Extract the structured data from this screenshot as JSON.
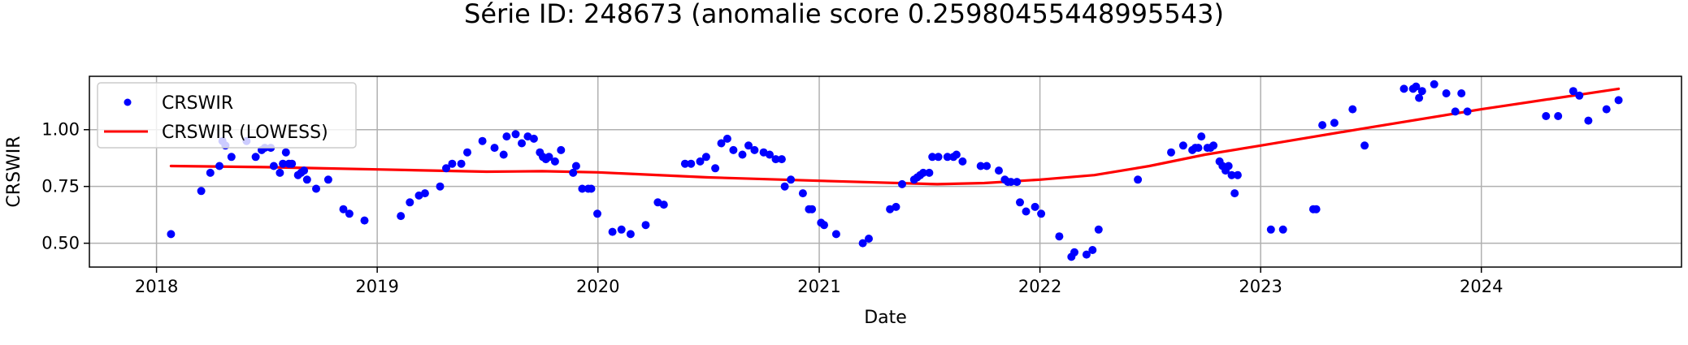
{
  "chart_data": {
    "type": "scatter",
    "title": "Série ID: 248673 (anomalie score 0.25980455448995543)",
    "xlabel": "Date",
    "ylabel": "CRSWIR",
    "xlim": [
      "2017-09-12",
      "2024-11-27"
    ],
    "ylim": [
      0.395,
      1.235
    ],
    "x_ticks": [
      "2018-01-01",
      "2019-01-01",
      "2020-01-01",
      "2021-01-01",
      "2022-01-01",
      "2023-01-01",
      "2024-01-01"
    ],
    "x_tick_labels": [
      "2018",
      "2019",
      "2020",
      "2021",
      "2022",
      "2023",
      "2024"
    ],
    "y_ticks": [
      0.5,
      0.75,
      1.0
    ],
    "y_tick_labels": [
      "0.50",
      "0.75",
      "1.00"
    ],
    "grid": true,
    "legend": "upper left",
    "colors": {
      "points": "#0000ff",
      "lowess": "#ff0000"
    },
    "series": [
      {
        "name": "CRSWIR",
        "kind": "scatter",
        "points": [
          [
            "2018-01-25",
            0.54
          ],
          [
            "2018-03-16",
            0.73
          ],
          [
            "2018-03-31",
            0.81
          ],
          [
            "2018-04-15",
            0.84
          ],
          [
            "2018-04-20",
            0.95
          ],
          [
            "2018-04-25",
            0.93
          ],
          [
            "2018-05-05",
            0.88
          ],
          [
            "2018-05-30",
            0.95
          ],
          [
            "2018-06-14",
            0.88
          ],
          [
            "2018-06-24",
            0.91
          ],
          [
            "2018-06-29",
            0.92
          ],
          [
            "2018-07-09",
            0.92
          ],
          [
            "2018-07-14",
            0.84
          ],
          [
            "2018-07-24",
            0.81
          ],
          [
            "2018-07-29",
            0.85
          ],
          [
            "2018-08-03",
            0.9
          ],
          [
            "2018-08-08",
            0.85
          ],
          [
            "2018-08-13",
            0.85
          ],
          [
            "2018-08-23",
            0.8
          ],
          [
            "2018-08-28",
            0.81
          ],
          [
            "2018-09-02",
            0.82
          ],
          [
            "2018-09-07",
            0.78
          ],
          [
            "2018-09-22",
            0.74
          ],
          [
            "2018-10-12",
            0.78
          ],
          [
            "2018-11-06",
            0.65
          ],
          [
            "2018-11-16",
            0.63
          ],
          [
            "2018-12-11",
            0.6
          ],
          [
            "2019-02-09",
            0.62
          ],
          [
            "2019-02-24",
            0.68
          ],
          [
            "2019-03-11",
            0.71
          ],
          [
            "2019-03-21",
            0.72
          ],
          [
            "2019-04-15",
            0.75
          ],
          [
            "2019-04-25",
            0.83
          ],
          [
            "2019-05-05",
            0.85
          ],
          [
            "2019-05-20",
            0.85
          ],
          [
            "2019-05-30",
            0.9
          ],
          [
            "2019-06-24",
            0.95
          ],
          [
            "2019-07-14",
            0.92
          ],
          [
            "2019-07-29",
            0.89
          ],
          [
            "2019-08-03",
            0.97
          ],
          [
            "2019-08-18",
            0.98
          ],
          [
            "2019-08-28",
            0.94
          ],
          [
            "2019-09-07",
            0.97
          ],
          [
            "2019-09-17",
            0.96
          ],
          [
            "2019-09-27",
            0.9
          ],
          [
            "2019-10-02",
            0.88
          ],
          [
            "2019-10-07",
            0.87
          ],
          [
            "2019-10-12",
            0.88
          ],
          [
            "2019-10-22",
            0.86
          ],
          [
            "2019-11-01",
            0.91
          ],
          [
            "2019-11-21",
            0.81
          ],
          [
            "2019-11-26",
            0.84
          ],
          [
            "2019-12-06",
            0.74
          ],
          [
            "2019-12-16",
            0.74
          ],
          [
            "2019-12-21",
            0.74
          ],
          [
            "2019-12-31",
            0.63
          ],
          [
            "2020-01-25",
            0.55
          ],
          [
            "2020-02-09",
            0.56
          ],
          [
            "2020-02-24",
            0.54
          ],
          [
            "2020-03-20",
            0.58
          ],
          [
            "2020-04-09",
            0.68
          ],
          [
            "2020-04-19",
            0.67
          ],
          [
            "2020-05-24",
            0.85
          ],
          [
            "2020-06-03",
            0.85
          ],
          [
            "2020-06-18",
            0.86
          ],
          [
            "2020-06-28",
            0.88
          ],
          [
            "2020-07-13",
            0.83
          ],
          [
            "2020-07-23",
            0.94
          ],
          [
            "2020-08-02",
            0.96
          ],
          [
            "2020-08-12",
            0.91
          ],
          [
            "2020-08-27",
            0.89
          ],
          [
            "2020-09-06",
            0.93
          ],
          [
            "2020-09-16",
            0.91
          ],
          [
            "2020-10-01",
            0.9
          ],
          [
            "2020-10-11",
            0.89
          ],
          [
            "2020-10-21",
            0.87
          ],
          [
            "2020-10-31",
            0.87
          ],
          [
            "2020-11-05",
            0.75
          ],
          [
            "2020-11-15",
            0.78
          ],
          [
            "2020-12-05",
            0.72
          ],
          [
            "2020-12-15",
            0.65
          ],
          [
            "2020-12-20",
            0.65
          ],
          [
            "2021-01-04",
            0.59
          ],
          [
            "2021-01-09",
            0.58
          ],
          [
            "2021-01-29",
            0.54
          ],
          [
            "2021-03-14",
            0.5
          ],
          [
            "2021-03-24",
            0.52
          ],
          [
            "2021-04-28",
            0.65
          ],
          [
            "2021-05-08",
            0.66
          ],
          [
            "2021-05-18",
            0.76
          ],
          [
            "2021-06-07",
            0.78
          ],
          [
            "2021-06-12",
            0.79
          ],
          [
            "2021-06-17",
            0.8
          ],
          [
            "2021-06-22",
            0.81
          ],
          [
            "2021-07-02",
            0.81
          ],
          [
            "2021-07-07",
            0.88
          ],
          [
            "2021-07-17",
            0.88
          ],
          [
            "2021-08-01",
            0.88
          ],
          [
            "2021-08-11",
            0.88
          ],
          [
            "2021-08-16",
            0.89
          ],
          [
            "2021-08-26",
            0.86
          ],
          [
            "2021-09-25",
            0.84
          ],
          [
            "2021-10-05",
            0.84
          ],
          [
            "2021-10-25",
            0.82
          ],
          [
            "2021-11-04",
            0.78
          ],
          [
            "2021-11-09",
            0.77
          ],
          [
            "2021-11-14",
            0.77
          ],
          [
            "2021-11-24",
            0.77
          ],
          [
            "2021-11-29",
            0.68
          ],
          [
            "2021-12-09",
            0.64
          ],
          [
            "2021-12-24",
            0.66
          ],
          [
            "2022-01-03",
            0.63
          ],
          [
            "2022-02-02",
            0.53
          ],
          [
            "2022-02-22",
            0.44
          ],
          [
            "2022-02-27",
            0.46
          ],
          [
            "2022-03-19",
            0.45
          ],
          [
            "2022-03-29",
            0.47
          ],
          [
            "2022-04-08",
            0.56
          ],
          [
            "2022-06-12",
            0.78
          ],
          [
            "2022-08-06",
            0.9
          ],
          [
            "2022-08-26",
            0.93
          ],
          [
            "2022-09-10",
            0.91
          ],
          [
            "2022-09-15",
            0.92
          ],
          [
            "2022-09-20",
            0.92
          ],
          [
            "2022-09-25",
            0.97
          ],
          [
            "2022-10-05",
            0.92
          ],
          [
            "2022-10-10",
            0.92
          ],
          [
            "2022-10-15",
            0.93
          ],
          [
            "2022-10-25",
            0.86
          ],
          [
            "2022-10-30",
            0.84
          ],
          [
            "2022-11-04",
            0.82
          ],
          [
            "2022-11-09",
            0.84
          ],
          [
            "2022-11-14",
            0.8
          ],
          [
            "2022-11-19",
            0.72
          ],
          [
            "2022-11-24",
            0.8
          ],
          [
            "2023-01-18",
            0.56
          ],
          [
            "2023-02-07",
            0.56
          ],
          [
            "2023-03-29",
            0.65
          ],
          [
            "2023-04-03",
            0.65
          ],
          [
            "2023-04-13",
            1.02
          ],
          [
            "2023-05-03",
            1.03
          ],
          [
            "2023-06-02",
            1.09
          ],
          [
            "2023-06-22",
            0.93
          ],
          [
            "2023-08-26",
            1.18
          ],
          [
            "2023-09-10",
            1.18
          ],
          [
            "2023-09-15",
            1.19
          ],
          [
            "2023-09-20",
            1.14
          ],
          [
            "2023-09-25",
            1.17
          ],
          [
            "2023-10-15",
            1.2
          ],
          [
            "2023-11-04",
            1.16
          ],
          [
            "2023-11-19",
            1.08
          ],
          [
            "2023-11-29",
            1.16
          ],
          [
            "2023-12-09",
            1.08
          ],
          [
            "2024-04-17",
            1.06
          ],
          [
            "2024-05-07",
            1.06
          ],
          [
            "2024-06-01",
            1.17
          ],
          [
            "2024-06-11",
            1.15
          ],
          [
            "2024-06-26",
            1.04
          ],
          [
            "2024-07-26",
            1.09
          ],
          [
            "2024-08-15",
            1.13
          ]
        ]
      },
      {
        "name": "CRSWIR (LOWESS)",
        "kind": "line",
        "points": [
          [
            "2018-01-25",
            0.84
          ],
          [
            "2018-07-01",
            0.835
          ],
          [
            "2019-01-01",
            0.825
          ],
          [
            "2019-07-01",
            0.815
          ],
          [
            "2019-10-01",
            0.817
          ],
          [
            "2020-01-01",
            0.812
          ],
          [
            "2020-07-01",
            0.79
          ],
          [
            "2021-01-01",
            0.775
          ],
          [
            "2021-07-15",
            0.76
          ],
          [
            "2021-10-01",
            0.765
          ],
          [
            "2022-01-01",
            0.78
          ],
          [
            "2022-04-01",
            0.8
          ],
          [
            "2022-07-01",
            0.84
          ],
          [
            "2022-10-01",
            0.89
          ],
          [
            "2023-01-01",
            0.93
          ],
          [
            "2023-07-01",
            1.01
          ],
          [
            "2024-01-01",
            1.09
          ],
          [
            "2024-08-15",
            1.18
          ]
        ]
      }
    ]
  }
}
